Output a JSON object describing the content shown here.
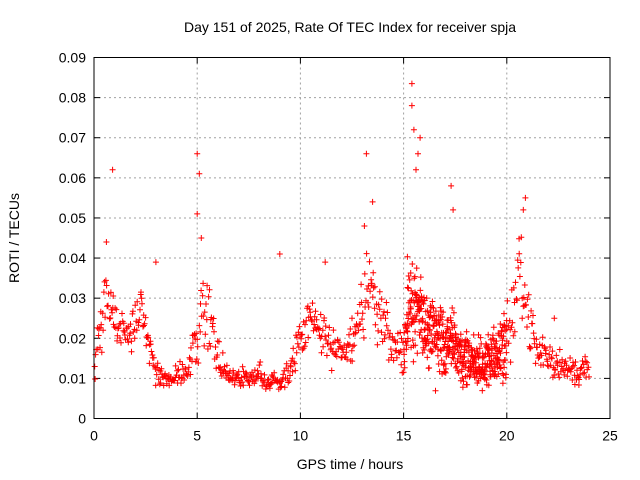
{
  "chart_data": {
    "type": "scatter",
    "title": "Day 151 of 2025, Rate Of TEC Index for receiver spja",
    "xlabel": "GPS time / hours",
    "ylabel": "ROTI / TECUs",
    "xlim": [
      0,
      25
    ],
    "ylim": [
      0,
      0.09
    ],
    "xticks": [
      0,
      5,
      10,
      15,
      20,
      25
    ],
    "xtick_labels": [
      "0",
      "5",
      "10",
      "15",
      "20",
      "25"
    ],
    "yticks": [
      0,
      0.01,
      0.02,
      0.03,
      0.04,
      0.05,
      0.06,
      0.07,
      0.08,
      0.09
    ],
    "ytick_labels": [
      "0",
      "0.01",
      "0.02",
      "0.03",
      "0.04",
      "0.05",
      "0.06",
      "0.07",
      "0.08",
      "0.09"
    ],
    "grid": true,
    "marker": "+",
    "color": "#ff0000",
    "envelope_hours": [
      0,
      0.3,
      0.6,
      0.9,
      1.5,
      2.0,
      2.3,
      2.6,
      3.0,
      3.5,
      4.0,
      4.5,
      5.0,
      5.3,
      5.7,
      6.0,
      6.5,
      7.0,
      7.5,
      8.0,
      8.5,
      9.0,
      9.5,
      10.0,
      10.5,
      11.0,
      11.5,
      12.0,
      12.5,
      13.0,
      13.3,
      13.7,
      14.0,
      14.5,
      15.0,
      15.3,
      15.6,
      16.0,
      16.5,
      17.0,
      17.5,
      18.0,
      18.5,
      19.0,
      19.5,
      20.0,
      20.3,
      20.6,
      21.0,
      21.5,
      22.0,
      22.5,
      23.0,
      23.5,
      24.0
    ],
    "envelope_center": [
      0.015,
      0.022,
      0.032,
      0.025,
      0.02,
      0.022,
      0.028,
      0.02,
      0.012,
      0.009,
      0.01,
      0.012,
      0.02,
      0.028,
      0.022,
      0.015,
      0.011,
      0.01,
      0.01,
      0.011,
      0.009,
      0.009,
      0.012,
      0.02,
      0.026,
      0.022,
      0.018,
      0.016,
      0.018,
      0.028,
      0.035,
      0.026,
      0.024,
      0.02,
      0.018,
      0.03,
      0.028,
      0.024,
      0.022,
      0.02,
      0.018,
      0.015,
      0.013,
      0.014,
      0.016,
      0.02,
      0.026,
      0.038,
      0.025,
      0.018,
      0.016,
      0.013,
      0.012,
      0.011,
      0.014
    ],
    "envelope_spread": [
      0.005,
      0.006,
      0.008,
      0.006,
      0.005,
      0.006,
      0.006,
      0.005,
      0.003,
      0.002,
      0.003,
      0.003,
      0.008,
      0.01,
      0.007,
      0.004,
      0.003,
      0.003,
      0.002,
      0.003,
      0.002,
      0.002,
      0.004,
      0.006,
      0.008,
      0.007,
      0.005,
      0.004,
      0.005,
      0.009,
      0.012,
      0.009,
      0.008,
      0.007,
      0.008,
      0.012,
      0.012,
      0.01,
      0.009,
      0.009,
      0.008,
      0.007,
      0.006,
      0.006,
      0.006,
      0.008,
      0.01,
      0.01,
      0.008,
      0.005,
      0.004,
      0.004,
      0.004,
      0.003,
      0.004
    ],
    "peaks": [
      {
        "x": 0.9,
        "y": 0.062
      },
      {
        "x": 0.6,
        "y": 0.044
      },
      {
        "x": 5.0,
        "y": 0.066
      },
      {
        "x": 5.1,
        "y": 0.061
      },
      {
        "x": 5.0,
        "y": 0.051
      },
      {
        "x": 5.2,
        "y": 0.045
      },
      {
        "x": 9.0,
        "y": 0.041
      },
      {
        "x": 11.2,
        "y": 0.039
      },
      {
        "x": 13.2,
        "y": 0.066
      },
      {
        "x": 13.1,
        "y": 0.048
      },
      {
        "x": 13.5,
        "y": 0.054
      },
      {
        "x": 15.4,
        "y": 0.0835
      },
      {
        "x": 15.4,
        "y": 0.078
      },
      {
        "x": 15.5,
        "y": 0.072
      },
      {
        "x": 15.8,
        "y": 0.07
      },
      {
        "x": 15.7,
        "y": 0.066
      },
      {
        "x": 15.6,
        "y": 0.062
      },
      {
        "x": 17.3,
        "y": 0.058
      },
      {
        "x": 17.4,
        "y": 0.052
      },
      {
        "x": 20.9,
        "y": 0.055
      },
      {
        "x": 20.8,
        "y": 0.052
      },
      {
        "x": 22.3,
        "y": 0.025
      },
      {
        "x": 3.0,
        "y": 0.039
      },
      {
        "x": 12.5,
        "y": 0.025
      }
    ]
  }
}
